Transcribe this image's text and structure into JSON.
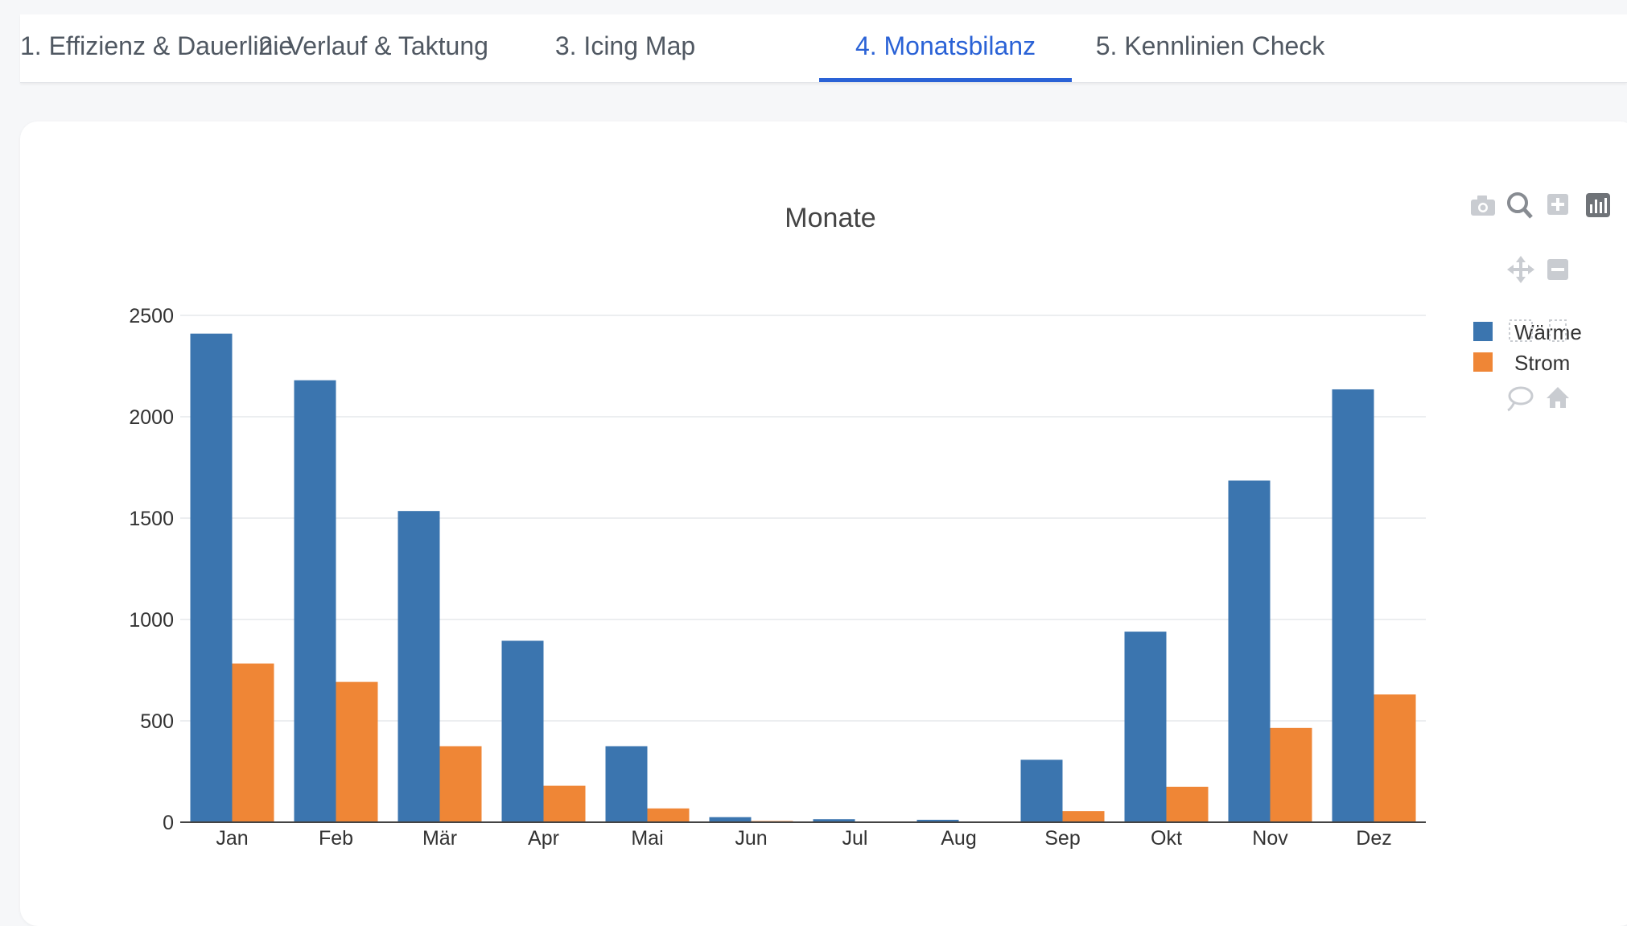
{
  "tabs": [
    {
      "label": "1. Effizienz & Dauerlinie",
      "active": false
    },
    {
      "label": "2. Verlauf & Taktung",
      "active": false
    },
    {
      "label": "3. Icing Map",
      "active": false
    },
    {
      "label": "4. Monatsbilanz",
      "active": true
    },
    {
      "label": "5. Kennlinien Check",
      "active": false
    }
  ],
  "colors": {
    "accent": "#2a62d6",
    "series_waerme": "#3b75af",
    "series_strom": "#ef8636"
  },
  "modebar": {
    "icons": [
      "camera-icon",
      "zoom-icon",
      "zoom-in-icon",
      "bar-chart-icon",
      "pan-icon",
      "zoom-out-icon",
      "box-select-icon",
      "lasso-icon",
      "home-icon"
    ]
  },
  "chart_data": {
    "type": "bar",
    "title": "Monate",
    "xlabel": "",
    "ylabel": "",
    "categories": [
      "Jan",
      "Feb",
      "Mär",
      "Apr",
      "Mai",
      "Jun",
      "Jul",
      "Aug",
      "Sep",
      "Okt",
      "Nov",
      "Dez"
    ],
    "series": [
      {
        "name": "Wärme",
        "values": [
          2410,
          2180,
          1535,
          895,
          375,
          25,
          15,
          12,
          308,
          940,
          1685,
          2135
        ]
      },
      {
        "name": "Strom",
        "values": [
          783,
          692,
          375,
          180,
          68,
          6,
          4,
          3,
          55,
          175,
          465,
          630
        ]
      }
    ],
    "ylim": [
      0,
      2500
    ],
    "yticks": [
      "0",
      "500",
      "1000",
      "1500",
      "2000",
      "2500"
    ],
    "grid": true,
    "legend_position": "top-right"
  }
}
